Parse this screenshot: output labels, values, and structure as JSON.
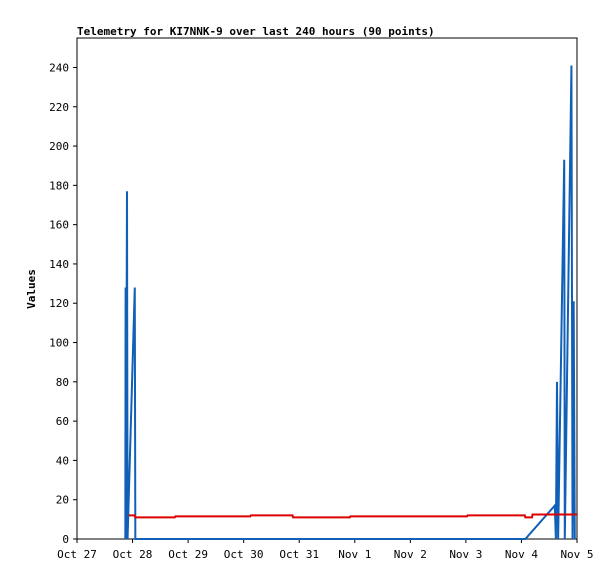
{
  "chart_data": {
    "type": "line",
    "title": "Telemetry for KI7NNK-9 over last 240 hours (90 points)",
    "ylabel": "Values",
    "xlim": [
      0,
      9
    ],
    "xticks": [
      {
        "value": 0,
        "label": "Oct 27"
      },
      {
        "value": 1,
        "label": "Oct 28"
      },
      {
        "value": 2,
        "label": "Oct 29"
      },
      {
        "value": 3,
        "label": "Oct 30"
      },
      {
        "value": 4,
        "label": "Oct 31"
      },
      {
        "value": 5,
        "label": "Nov 1"
      },
      {
        "value": 6,
        "label": "Nov 2"
      },
      {
        "value": 7,
        "label": "Nov 3"
      },
      {
        "value": 8,
        "label": "Nov 4"
      },
      {
        "value": 9,
        "label": "Nov 5"
      }
    ],
    "ylim": [
      0,
      255
    ],
    "yticks": [
      0,
      20,
      40,
      60,
      80,
      100,
      120,
      140,
      160,
      180,
      200,
      220,
      240
    ],
    "series": [
      {
        "color": "#1060b8",
        "x": [
          0.87,
          0.875,
          0.88,
          0.9,
          0.91,
          1.04,
          1.05,
          8.07,
          8.6,
          8.62,
          8.64,
          8.66,
          8.77,
          8.78,
          8.9,
          8.92,
          8.94,
          8.96
        ],
        "values": [
          0,
          128,
          0,
          177,
          0,
          128,
          0,
          0,
          17,
          0,
          80,
          0,
          193,
          0,
          241,
          0,
          121,
          0
        ]
      },
      {
        "color": "#dd0000",
        "x": [
          0.93,
          1.04,
          1.05,
          1.76,
          1.77,
          3.12,
          3.13,
          3.88,
          3.89,
          4.91,
          4.92,
          7.02,
          7.03,
          8.06,
          8.07,
          8.19,
          8.2,
          9
        ],
        "values": [
          12,
          12,
          11,
          11,
          11.5,
          11.5,
          12,
          12,
          11,
          11,
          11.5,
          11.5,
          12,
          12,
          11,
          11,
          12.5,
          12.5
        ]
      }
    ]
  }
}
